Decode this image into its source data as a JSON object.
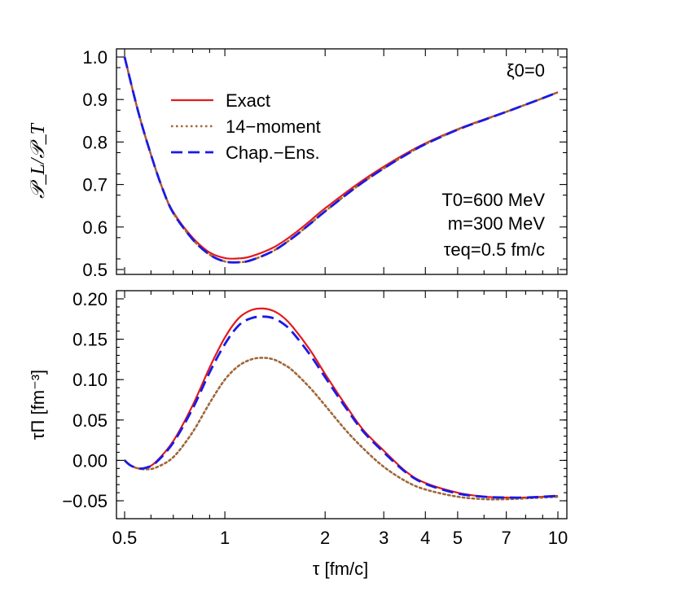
{
  "chart_data": [
    {
      "type": "line",
      "panel": "top",
      "ylabel": "𝒫_L/𝒫_T",
      "xscale": "log",
      "xlim": [
        0.5,
        10
      ],
      "ylim": [
        0.5,
        1.0
      ],
      "yticks": [
        "1.0",
        "0.9",
        "0.8",
        "0.7",
        "0.6",
        "0.5"
      ],
      "ytick_values": [
        1.0,
        0.9,
        0.8,
        0.7,
        0.6,
        0.5
      ],
      "annotations": {
        "xi": "ξ0=0",
        "T0": "T0=600 MeV",
        "m": "m=300 MeV",
        "tau_eq": "τeq=0.5 fm/c"
      },
      "legend": [
        "Exact",
        "14−moment",
        "Chap.−Ens."
      ],
      "legend_position": "upper-left",
      "x": [
        0.5,
        0.55,
        0.6,
        0.65,
        0.7,
        0.8,
        0.9,
        1.0,
        1.1,
        1.2,
        1.4,
        1.6,
        1.8,
        2.0,
        2.5,
        3.0,
        3.5,
        4.0,
        5.0,
        6.0,
        7.0,
        8.0,
        9.0,
        10.0
      ],
      "series": [
        {
          "name": "Exact",
          "color": "#e31a1c",
          "style": "solid",
          "values": [
            1.0,
            0.87,
            0.77,
            0.69,
            0.635,
            0.575,
            0.54,
            0.527,
            0.526,
            0.531,
            0.552,
            0.582,
            0.614,
            0.644,
            0.701,
            0.742,
            0.773,
            0.797,
            0.83,
            0.853,
            0.871,
            0.888,
            0.903,
            0.917
          ]
        },
        {
          "name": "14−moment",
          "color": "#a0673a",
          "style": "dotted",
          "values": [
            1.0,
            0.87,
            0.77,
            0.69,
            0.633,
            0.571,
            0.535,
            0.519,
            0.517,
            0.522,
            0.544,
            0.575,
            0.607,
            0.637,
            0.696,
            0.738,
            0.77,
            0.795,
            0.829,
            0.852,
            0.871,
            0.888,
            0.903,
            0.917
          ]
        },
        {
          "name": "Chap.−Ens.",
          "color": "#1a1ae6",
          "style": "dashed",
          "values": [
            1.0,
            0.87,
            0.77,
            0.69,
            0.633,
            0.571,
            0.535,
            0.519,
            0.517,
            0.522,
            0.544,
            0.575,
            0.607,
            0.637,
            0.696,
            0.738,
            0.77,
            0.795,
            0.829,
            0.852,
            0.871,
            0.888,
            0.903,
            0.917
          ]
        }
      ]
    },
    {
      "type": "line",
      "panel": "bottom",
      "ylabel": "τΠ [fm⁻³]",
      "xlabel": "τ [fm/c]",
      "xscale": "log",
      "xlim": [
        0.5,
        10
      ],
      "ylim": [
        -0.065,
        0.205
      ],
      "yticks": [
        "0.20",
        "0.15",
        "0.10",
        "0.05",
        "0.00",
        "−0.05"
      ],
      "ytick_values": [
        0.2,
        0.15,
        0.1,
        0.05,
        0.0,
        -0.05
      ],
      "xticks": [
        "0.5",
        "1",
        "2",
        "3",
        "4",
        "5",
        "7",
        "10"
      ],
      "xtick_values": [
        0.5,
        1,
        2,
        3,
        4,
        5,
        7,
        10
      ],
      "x": [
        0.5,
        0.52,
        0.55,
        0.58,
        0.62,
        0.7,
        0.8,
        0.9,
        1.0,
        1.1,
        1.2,
        1.3,
        1.4,
        1.5,
        1.6,
        1.8,
        2.0,
        2.3,
        2.6,
        3.0,
        3.5,
        4.0,
        5.0,
        6.0,
        7.0,
        8.0,
        9.0,
        10.0
      ],
      "series": [
        {
          "name": "Exact",
          "color": "#e31a1c",
          "style": "solid",
          "values": [
            0.0,
            -0.006,
            -0.01,
            -0.009,
            -0.002,
            0.024,
            0.068,
            0.115,
            0.152,
            0.176,
            0.186,
            0.188,
            0.185,
            0.177,
            0.165,
            0.137,
            0.107,
            0.069,
            0.038,
            0.012,
            -0.014,
            -0.028,
            -0.04,
            -0.045,
            -0.046,
            -0.046,
            -0.045,
            -0.044
          ]
        },
        {
          "name": "14−moment",
          "color": "#a0673a",
          "style": "dotted",
          "values": [
            0.0,
            -0.006,
            -0.01,
            -0.011,
            -0.009,
            0.004,
            0.035,
            0.071,
            0.1,
            0.117,
            0.125,
            0.127,
            0.125,
            0.119,
            0.111,
            0.09,
            0.068,
            0.038,
            0.015,
            -0.008,
            -0.026,
            -0.036,
            -0.045,
            -0.048,
            -0.048,
            -0.047,
            -0.046,
            -0.045
          ]
        },
        {
          "name": "Chap.−Ens.",
          "color": "#1a1ae6",
          "style": "dashed",
          "values": [
            0.0,
            -0.006,
            -0.01,
            -0.009,
            -0.003,
            0.022,
            0.064,
            0.109,
            0.144,
            0.167,
            0.176,
            0.178,
            0.176,
            0.169,
            0.158,
            0.131,
            0.103,
            0.066,
            0.036,
            0.01,
            -0.015,
            -0.029,
            -0.041,
            -0.045,
            -0.046,
            -0.046,
            -0.045,
            -0.044
          ]
        }
      ]
    }
  ]
}
